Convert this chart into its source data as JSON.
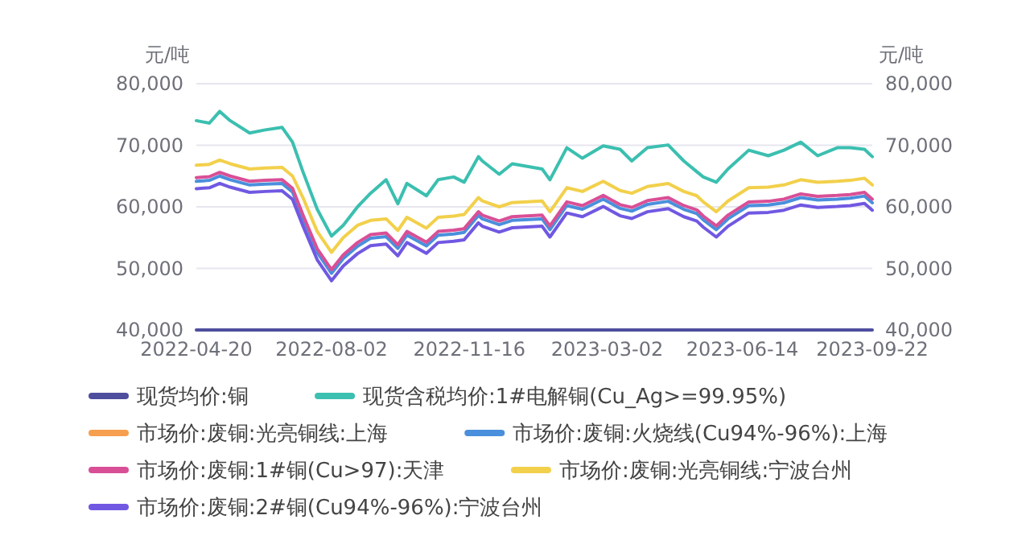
{
  "chart_data": {
    "type": "line",
    "ylabel": "元/吨",
    "y2label": "元/吨",
    "x": [
      "2022-04-20",
      "2022-04-30",
      "2022-05-08",
      "2022-05-16",
      "2022-05-31",
      "2022-06-12",
      "2022-06-25",
      "2022-07-03",
      "2022-07-11",
      "2022-07-22",
      "2022-08-02",
      "2022-08-11",
      "2022-08-22",
      "2022-09-01",
      "2022-09-13",
      "2022-09-22",
      "2022-09-29",
      "2022-10-14",
      "2022-10-23",
      "2022-11-04",
      "2022-11-12",
      "2022-11-23",
      "2022-11-26",
      "2022-12-09",
      "2022-12-19",
      "2023-01-11",
      "2023-01-17",
      "2023-01-30",
      "2023-02-11",
      "2023-02-27",
      "2023-03-12",
      "2023-03-21",
      "2023-04-02",
      "2023-04-18",
      "2023-04-30",
      "2023-05-10",
      "2023-05-15",
      "2023-05-25",
      "2023-06-03",
      "2023-06-19",
      "2023-07-04",
      "2023-07-16",
      "2023-07-29",
      "2023-08-11",
      "2023-08-26",
      "2023-09-05",
      "2023-09-16",
      "2023-09-22"
    ],
    "xlim": [
      "2022-04-20",
      "2023-09-22"
    ],
    "xticks": [
      "2022-04-20",
      "2022-08-02",
      "2022-11-16",
      "2023-03-02",
      "2023-06-14",
      "2023-09-22"
    ],
    "ylim": [
      40000,
      80000
    ],
    "yticks": [
      {
        "value": 40000,
        "label": "40,000"
      },
      {
        "value": 50000,
        "label": "50,000"
      },
      {
        "value": 60000,
        "label": "60,000"
      },
      {
        "value": 70000,
        "label": "70,000"
      },
      {
        "value": 80000,
        "label": "80,000"
      }
    ],
    "y2lim": [
      40000,
      80000
    ],
    "y2ticks": [
      {
        "value": 40000,
        "label": "40,000"
      },
      {
        "value": 50000,
        "label": "50,000"
      },
      {
        "value": 60000,
        "label": "60,000"
      },
      {
        "value": 70000,
        "label": "70,000"
      },
      {
        "value": 80000,
        "label": "80,000"
      }
    ],
    "grid": "y",
    "legend": "bottom",
    "marker": "none",
    "line_style": "solid",
    "series": [
      {
        "name": "现货均价:铜",
        "color": "#4e4e9e",
        "values": [
          40000,
          40000,
          40000,
          40000,
          40000,
          40000,
          40000,
          40000,
          40000,
          40000,
          40000,
          40000,
          40000,
          40000,
          40000,
          40000,
          40000,
          40000,
          40000,
          40000,
          40000,
          40000,
          40000,
          40000,
          40000,
          40000,
          40000,
          40000,
          40000,
          40000,
          40000,
          40000,
          40000,
          40000,
          40000,
          40000,
          40000,
          40000,
          40000,
          40000,
          40000,
          40000,
          40000,
          40000,
          40000,
          40000,
          40000,
          40000
        ]
      },
      {
        "name": "现货含税均价:1#电解铜(Cu_Ag>=99.95%)",
        "color": "#3bbfb0",
        "values": [
          74000,
          73600,
          75500,
          74000,
          72000,
          72500,
          72900,
          70500,
          65700,
          59600,
          55250,
          57000,
          60000,
          62200,
          64400,
          60500,
          63800,
          61800,
          64400,
          64850,
          64000,
          68150,
          67450,
          65300,
          67000,
          66150,
          64400,
          69600,
          67900,
          69900,
          69350,
          67450,
          69600,
          70050,
          67450,
          65700,
          64850,
          64000,
          66150,
          69200,
          68300,
          69200,
          70500,
          68300,
          69600,
          69600,
          69350,
          68150
        ]
      },
      {
        "name": "市场价:废铜:光亮铜线:上海",
        "color": "#f59f4f",
        "values": [
          null,
          null,
          null,
          null,
          null,
          null,
          null,
          null,
          null,
          null,
          null,
          null,
          null,
          null,
          null,
          null,
          null,
          null,
          null,
          null,
          null,
          null,
          null,
          null,
          null,
          null,
          null,
          null,
          null,
          null,
          null,
          null,
          null,
          null,
          null,
          null,
          null,
          null,
          null,
          null,
          null,
          null,
          null,
          null,
          null,
          null,
          null,
          null
        ]
      },
      {
        "name": "市场价:废铜:火烧线(Cu94%-96%):上海",
        "color": "#4a8fdc",
        "values": [
          64150,
          64300,
          65000,
          64400,
          63550,
          63700,
          63800,
          62400,
          58100,
          52600,
          49200,
          51600,
          53600,
          54900,
          55150,
          53250,
          55400,
          53650,
          55400,
          55600,
          55850,
          58600,
          58050,
          57100,
          57800,
          58050,
          56300,
          60200,
          59600,
          61250,
          59750,
          59300,
          60400,
          60900,
          59600,
          58900,
          57900,
          56300,
          58050,
          60200,
          60300,
          60650,
          61500,
          61100,
          61250,
          61400,
          61750,
          60650
        ]
      },
      {
        "name": "市场价:废铜:1#铜(Cu>97):天津",
        "color": "#d94f96",
        "values": [
          64750,
          64900,
          65600,
          65000,
          64150,
          64300,
          64400,
          63000,
          58700,
          53200,
          49800,
          52200,
          54200,
          55500,
          55750,
          53850,
          56000,
          54250,
          56000,
          56200,
          56450,
          59200,
          58650,
          57700,
          58400,
          58650,
          56900,
          60800,
          60200,
          61850,
          60350,
          59900,
          61000,
          61500,
          60200,
          59500,
          58500,
          56900,
          58650,
          60800,
          60900,
          61250,
          62100,
          61700,
          61850,
          62000,
          62350,
          61250
        ]
      },
      {
        "name": "市场价:废铜:光亮铜线:宁波台州",
        "color": "#f2d04b",
        "values": [
          66750,
          66900,
          67600,
          67000,
          66150,
          66300,
          66400,
          65000,
          61500,
          56000,
          52600,
          55000,
          57000,
          57800,
          58050,
          56150,
          58300,
          56550,
          58300,
          58500,
          58750,
          61500,
          60950,
          60000,
          60700,
          60950,
          59200,
          63100,
          62500,
          64150,
          62650,
          62200,
          63300,
          63800,
          62500,
          61800,
          60800,
          59200,
          60950,
          63100,
          63200,
          63550,
          64400,
          64000,
          64150,
          64300,
          64650,
          63550
        ]
      },
      {
        "name": "市场价:废铜:2#铜(Cu94%-96%):宁波台州",
        "color": "#7158e2",
        "values": [
          62950,
          63100,
          63800,
          63200,
          62350,
          62500,
          62600,
          61200,
          56900,
          51400,
          48000,
          50400,
          52400,
          53700,
          53950,
          52050,
          54200,
          52450,
          54200,
          54400,
          54650,
          57400,
          56850,
          55900,
          56600,
          56850,
          55100,
          59000,
          58400,
          60050,
          58550,
          58100,
          59200,
          59700,
          58400,
          57700,
          56700,
          55100,
          56850,
          59000,
          59100,
          59450,
          60300,
          59900,
          60050,
          60200,
          60550,
          59450
        ]
      }
    ]
  }
}
